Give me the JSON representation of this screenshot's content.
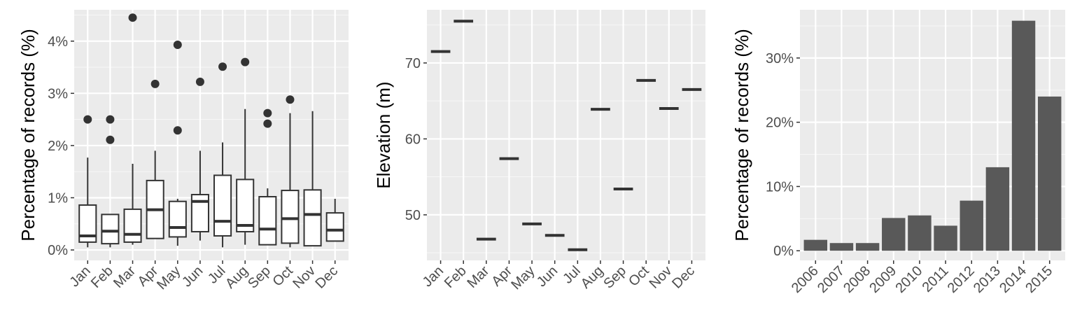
{
  "colors": {
    "panel_bg": "#ebebeb",
    "grid_major": "#ffffff",
    "mark": "#333333",
    "bar_fill": "#595959",
    "box_fill": "#ffffff",
    "tick_text": "#4d4d4d"
  },
  "chart_data": [
    {
      "type": "box",
      "xlabel": "",
      "ylabel": "Percentage of records (%)",
      "categories": [
        "Jan",
        "Feb",
        "Mar",
        "Apr",
        "May",
        "Jun",
        "Jul",
        "Aug",
        "Sep",
        "Oct",
        "Nov",
        "Dec"
      ],
      "ylim": [
        -0.2,
        4.6
      ],
      "yticks": [
        0,
        1,
        2,
        3,
        4
      ],
      "ytick_labels": [
        "0%",
        "1%",
        "2%",
        "3%",
        "4%"
      ],
      "grid": true,
      "boxes": [
        {
          "low": 0.05,
          "q1": 0.15,
          "median": 0.27,
          "q3": 0.86,
          "high": 1.77,
          "outliers": [
            2.5
          ]
        },
        {
          "low": 0.05,
          "q1": 0.12,
          "median": 0.36,
          "q3": 0.68,
          "high": 0.68,
          "outliers": [
            2.11,
            2.5
          ]
        },
        {
          "low": 0.1,
          "q1": 0.15,
          "median": 0.3,
          "q3": 0.78,
          "high": 1.65,
          "outliers": [
            4.45
          ]
        },
        {
          "low": 0.22,
          "q1": 0.22,
          "median": 0.77,
          "q3": 1.33,
          "high": 1.9,
          "outliers": [
            3.18
          ]
        },
        {
          "low": 0.08,
          "q1": 0.25,
          "median": 0.43,
          "q3": 0.93,
          "high": 0.98,
          "outliers": [
            2.29,
            3.93
          ]
        },
        {
          "low": 0.18,
          "q1": 0.35,
          "median": 0.93,
          "q3": 1.06,
          "high": 1.9,
          "outliers": [
            3.22
          ]
        },
        {
          "low": 0.05,
          "q1": 0.27,
          "median": 0.55,
          "q3": 1.43,
          "high": 2.06,
          "outliers": [
            3.51
          ]
        },
        {
          "low": 0.1,
          "q1": 0.35,
          "median": 0.47,
          "q3": 1.35,
          "high": 2.7,
          "outliers": [
            3.6
          ]
        },
        {
          "low": 0.1,
          "q1": 0.1,
          "median": 0.4,
          "q3": 1.02,
          "high": 1.18,
          "outliers": [
            2.42,
            2.62
          ]
        },
        {
          "low": 0.05,
          "q1": 0.13,
          "median": 0.6,
          "q3": 1.14,
          "high": 2.62,
          "outliers": [
            2.88
          ]
        },
        {
          "low": 0.08,
          "q1": 0.08,
          "median": 0.68,
          "q3": 1.15,
          "high": 2.66,
          "outliers": []
        },
        {
          "low": 0.17,
          "q1": 0.17,
          "median": 0.38,
          "q3": 0.71,
          "high": 0.98,
          "outliers": []
        }
      ]
    },
    {
      "type": "scatter",
      "xlabel": "",
      "ylabel": "Elevation (m)",
      "categories": [
        "Jan",
        "Feb",
        "Mar",
        "Apr",
        "May",
        "Jun",
        "Jul",
        "Aug",
        "Sep",
        "Oct",
        "Nov",
        "Dec"
      ],
      "values": [
        71.5,
        75.5,
        46.8,
        57.4,
        48.8,
        47.3,
        45.4,
        63.9,
        53.4,
        67.7,
        64.0,
        66.5
      ],
      "ylim": [
        44.0,
        77.0
      ],
      "yticks": [
        50,
        60,
        70
      ],
      "ytick_labels": [
        "50",
        "60",
        "70"
      ],
      "grid": true,
      "marker": "short horizontal dash"
    },
    {
      "type": "bar",
      "xlabel": "",
      "ylabel": "Percentage of records (%)",
      "categories": [
        "2006",
        "2007",
        "2008",
        "2009",
        "2010",
        "2011",
        "2012",
        "2013",
        "2014",
        "2015"
      ],
      "values": [
        1.7,
        1.2,
        1.2,
        5.1,
        5.5,
        3.9,
        7.8,
        13.0,
        35.8,
        24.0
      ],
      "ylim": [
        -1.5,
        37.5
      ],
      "yticks": [
        0,
        10,
        20,
        30
      ],
      "ytick_labels": [
        "0%",
        "10%",
        "20%",
        "30%"
      ],
      "grid": true
    }
  ]
}
